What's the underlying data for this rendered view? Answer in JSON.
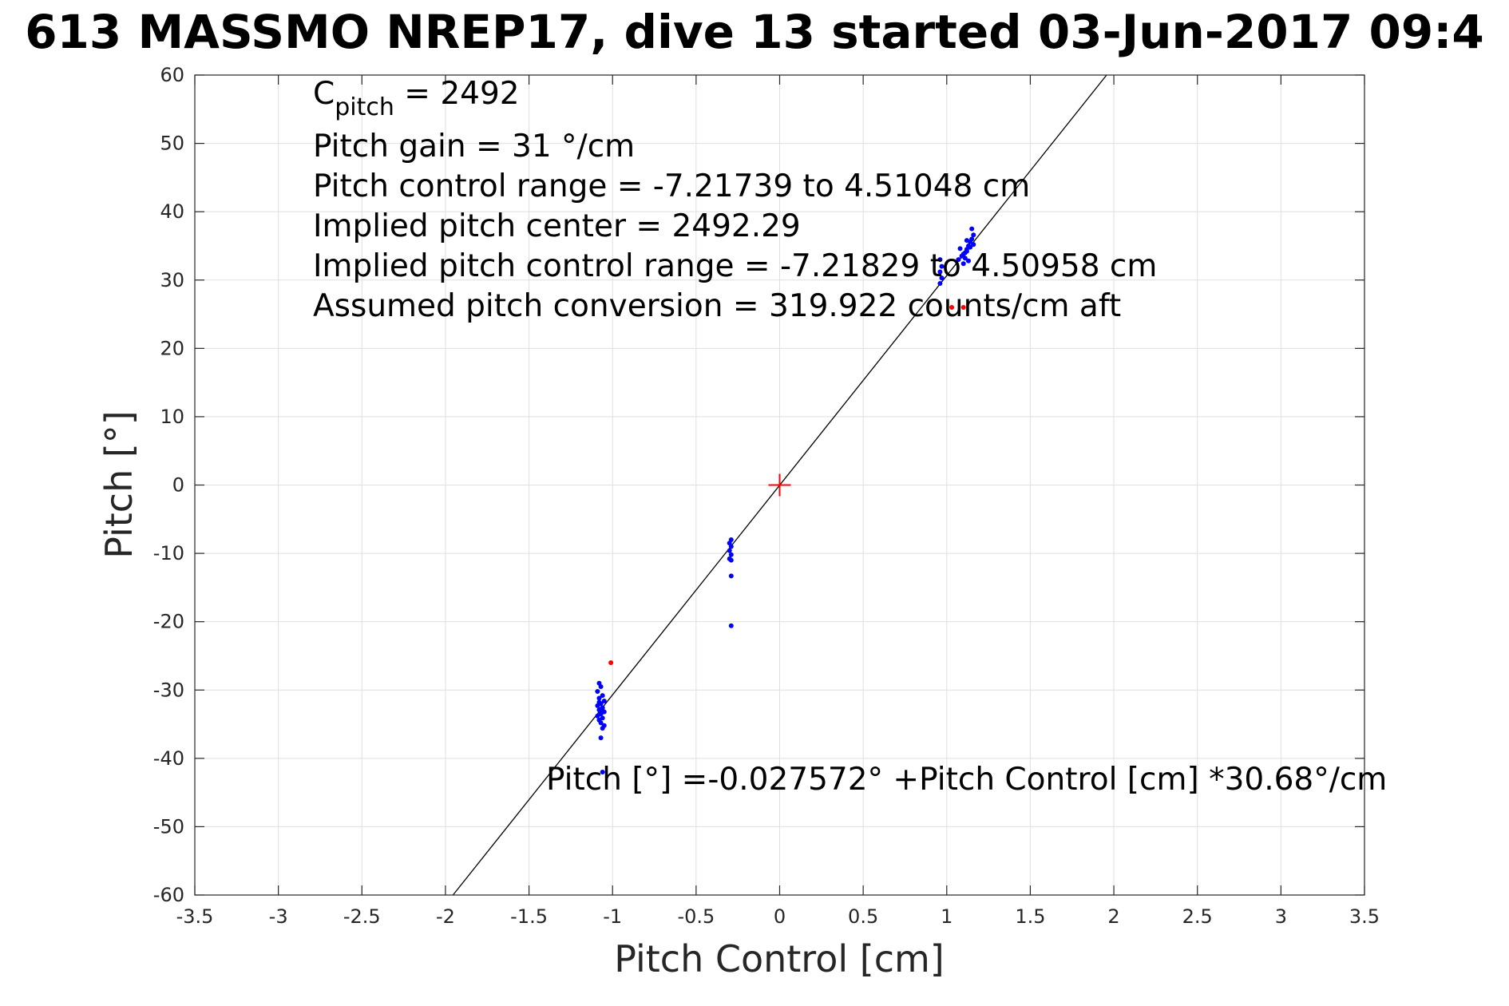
{
  "chart_data": {
    "type": "scatter",
    "title": "613 MASSMO NREP17, dive 13 started 03-Jun-2017 09:4",
    "xlabel": "Pitch Control [cm]",
    "ylabel": "Pitch [°]",
    "xlim": [
      -3.5,
      3.5
    ],
    "ylim": [
      -60,
      60
    ],
    "xticks": [
      -3.5,
      -3,
      -2.5,
      -2,
      -1.5,
      -1,
      -0.5,
      0,
      0.5,
      1,
      1.5,
      2,
      2.5,
      3,
      3.5
    ],
    "xtick_labels": [
      "-3.5",
      "-3",
      "-2.5",
      "-2",
      "-1.5",
      "-1",
      "-0.5",
      "0",
      "0.5",
      "1",
      "1.5",
      "2",
      "2.5",
      "3",
      "3.5"
    ],
    "yticks": [
      -60,
      -50,
      -40,
      -30,
      -20,
      -10,
      0,
      10,
      20,
      30,
      40,
      50,
      60
    ],
    "ytick_labels": [
      "-60",
      "-50",
      "-40",
      "-30",
      "-20",
      "-10",
      "0",
      "10",
      "20",
      "30",
      "40",
      "50",
      "60"
    ],
    "grid": true,
    "annotations": {
      "c_pitch_prefix": "C",
      "c_pitch_sub": "pitch",
      "c_pitch_suffix": " = 2492",
      "lines": [
        "Pitch gain = 31 °/cm",
        "Pitch control range = -7.21739 to 4.51048 cm",
        "Implied pitch center = 2492.29",
        "Implied pitch control range = -7.21829 to 4.50958 cm",
        "Assumed pitch conversion = 319.922 counts/cm aft"
      ],
      "fit_equation": "Pitch [°] =-0.027572° +Pitch Control [cm] *30.68°/cm"
    },
    "fit_line": {
      "intercept": -0.027572,
      "slope": 30.68
    },
    "center_marker": {
      "x": 0,
      "y": 0
    },
    "series": [
      {
        "color": "#0000ff",
        "points": [
          [
            -1.08,
            -29.0
          ],
          [
            -1.07,
            -29.5
          ],
          [
            -1.09,
            -30.2
          ],
          [
            -1.06,
            -30.8
          ],
          [
            -1.08,
            -31.2
          ],
          [
            -1.05,
            -31.6
          ],
          [
            -1.07,
            -32.0
          ],
          [
            -1.09,
            -32.3
          ],
          [
            -1.06,
            -32.6
          ],
          [
            -1.08,
            -32.9
          ],
          [
            -1.05,
            -33.2
          ],
          [
            -1.07,
            -33.5
          ],
          [
            -1.09,
            -33.8
          ],
          [
            -1.06,
            -34.1
          ],
          [
            -1.08,
            -34.4
          ],
          [
            -1.07,
            -34.8
          ],
          [
            -1.05,
            -35.2
          ],
          [
            -1.06,
            -33.0
          ],
          [
            -1.08,
            -31.8
          ],
          [
            -1.07,
            -32.8
          ],
          [
            -1.06,
            -35.6
          ],
          [
            -1.07,
            -37.0
          ],
          [
            -1.06,
            -42.0
          ],
          [
            -0.29,
            -8.0
          ],
          [
            -0.3,
            -8.5
          ],
          [
            -0.29,
            -9.0
          ],
          [
            -0.3,
            -9.6
          ],
          [
            -0.29,
            -10.2
          ],
          [
            -0.3,
            -10.8
          ],
          [
            -0.29,
            -11.0
          ],
          [
            -0.29,
            -13.3
          ],
          [
            -0.29,
            -20.6
          ],
          [
            0.96,
            29.5
          ],
          [
            0.97,
            30.3
          ],
          [
            0.96,
            31.2
          ],
          [
            0.97,
            32.0
          ],
          [
            0.96,
            33.0
          ],
          [
            1.07,
            33.0
          ],
          [
            1.09,
            33.5
          ],
          [
            1.11,
            34.0
          ],
          [
            1.12,
            34.5
          ],
          [
            1.13,
            35.0
          ],
          [
            1.1,
            33.8
          ],
          [
            1.14,
            35.6
          ],
          [
            1.12,
            34.2
          ],
          [
            1.15,
            36.0
          ],
          [
            1.16,
            36.6
          ],
          [
            1.15,
            37.5
          ],
          [
            1.13,
            32.8
          ],
          [
            1.11,
            33.2
          ],
          [
            1.14,
            34.8
          ],
          [
            1.1,
            32.4
          ],
          [
            1.16,
            35.2
          ],
          [
            1.08,
            34.6
          ],
          [
            1.12,
            35.8
          ]
        ]
      },
      {
        "color": "#ff0000",
        "points": [
          [
            -1.01,
            -26.0
          ],
          [
            1.03,
            26.0
          ],
          [
            1.1,
            26.0
          ]
        ]
      }
    ]
  }
}
